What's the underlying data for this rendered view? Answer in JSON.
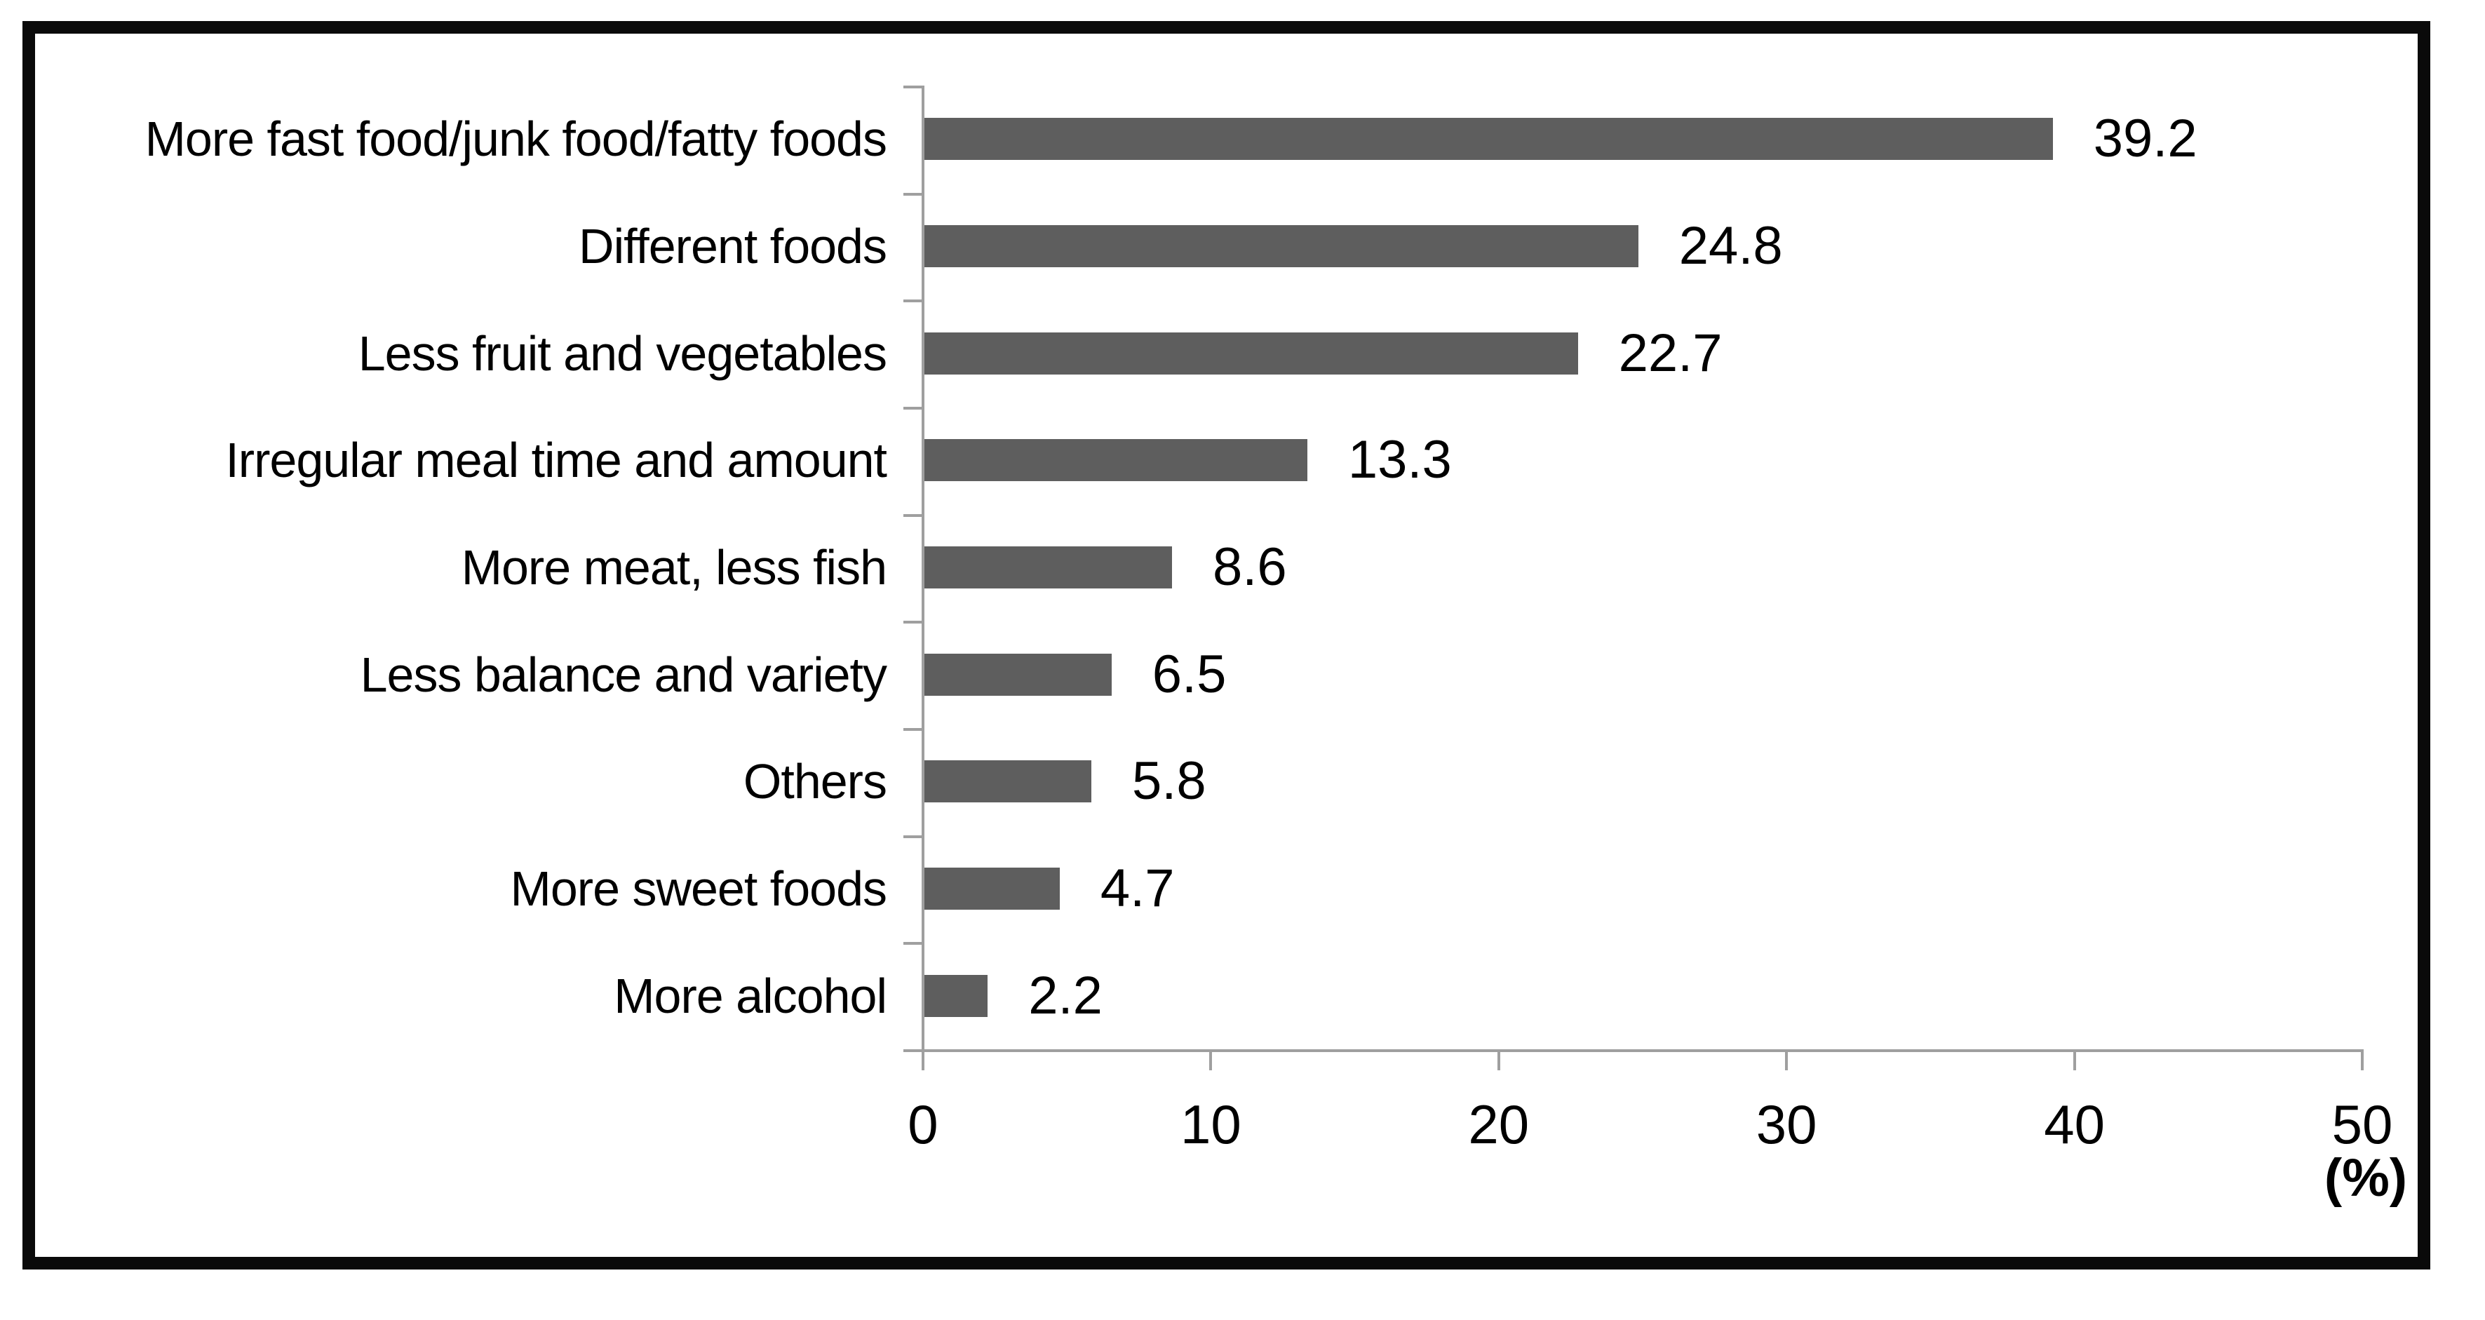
{
  "chart_data": {
    "type": "bar",
    "orientation": "horizontal",
    "title": "",
    "categories": [
      "More fast food/junk food/fatty foods",
      "Different foods",
      "Less fruit and vegetables",
      "Irregular meal time and amount",
      "More meat, less fish",
      "Less balance and variety",
      "Others",
      "More sweet foods",
      "More alcohol"
    ],
    "values": [
      39.2,
      24.8,
      22.7,
      13.3,
      8.6,
      6.5,
      5.8,
      4.7,
      2.2
    ],
    "data_labels": [
      "39.2",
      "24.8",
      "22.7",
      "13.3",
      "8.6",
      "6.5",
      "5.8",
      "4.7",
      "2.2"
    ],
    "xlabel": "(%)",
    "xlim": [
      0,
      50
    ],
    "x_ticks": [
      0,
      10,
      20,
      30,
      40,
      50
    ],
    "x_tick_labels": [
      "0",
      "10",
      "20",
      "30",
      "40",
      "50"
    ],
    "grid": false,
    "legend": "none",
    "bar_color": "#5e5e5e",
    "axis_color": "#9f9f9f",
    "text_color": "#000000",
    "frame_color": "#0a0a0a",
    "background_color": "#ffffff"
  }
}
